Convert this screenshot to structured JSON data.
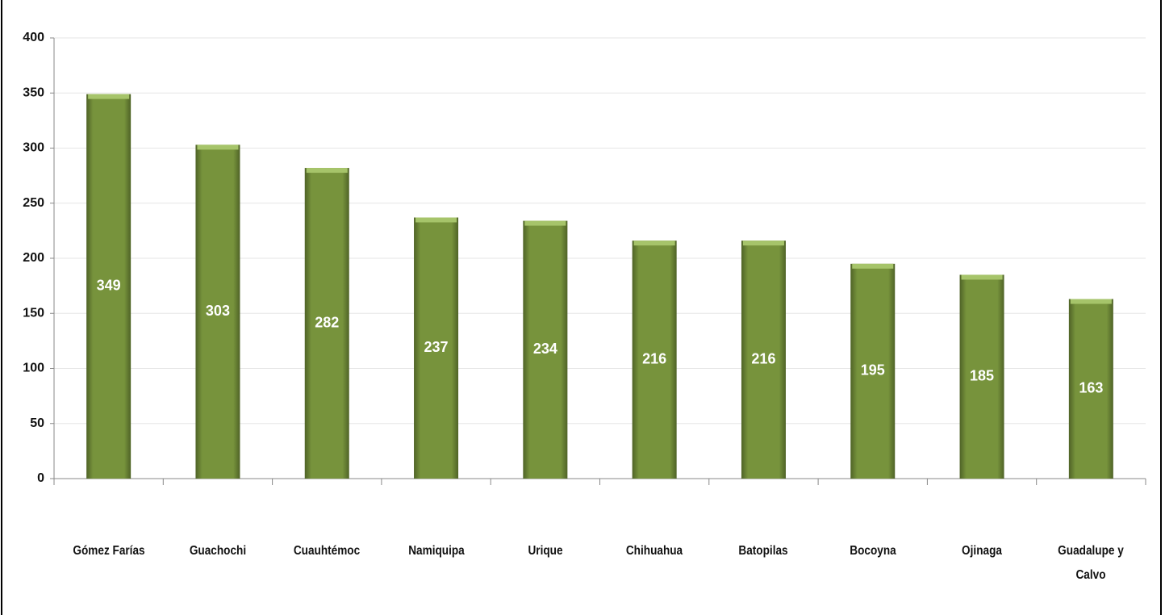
{
  "chart_data": {
    "type": "bar",
    "categories": [
      "Gómez Farías",
      "Guachochi",
      "Cuauhtémoc",
      "Namiquipa",
      "Urique",
      "Chihuahua",
      "Batopilas",
      "Bocoyna",
      "Ojinaga",
      "Guadalupe y Calvo"
    ],
    "values": [
      349,
      303,
      282,
      237,
      234,
      216,
      216,
      195,
      185,
      163
    ],
    "color": "#77933c",
    "ylim": [
      0,
      400
    ],
    "yticks": [
      0,
      50,
      100,
      150,
      200,
      250,
      300,
      350,
      400
    ],
    "grid": true
  }
}
